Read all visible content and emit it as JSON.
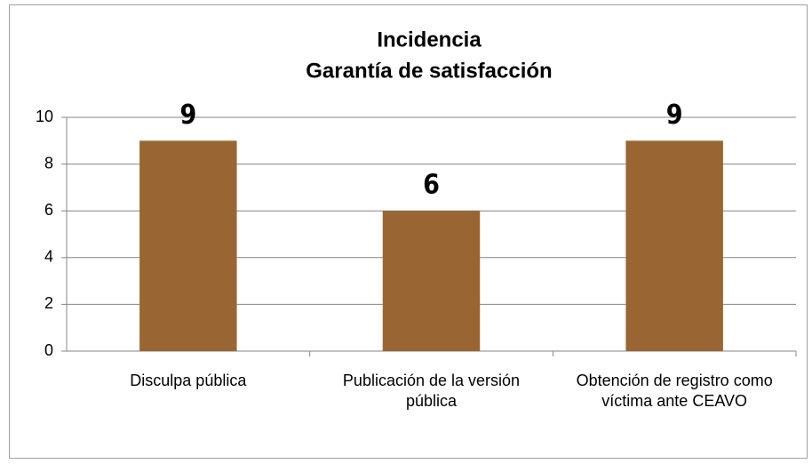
{
  "chart_data": {
    "type": "bar",
    "title": [
      "Incidencia",
      "Garantía de satisfacción"
    ],
    "categories": [
      "Disculpa pública",
      "Publicación de la versión pública",
      "Obtención de registro como víctima ante CEAVO"
    ],
    "values": [
      9,
      6,
      9
    ],
    "color": "#996633",
    "ylim": [
      0,
      10
    ],
    "yticks": [
      0,
      2,
      4,
      6,
      8,
      10
    ],
    "grid": true
  }
}
